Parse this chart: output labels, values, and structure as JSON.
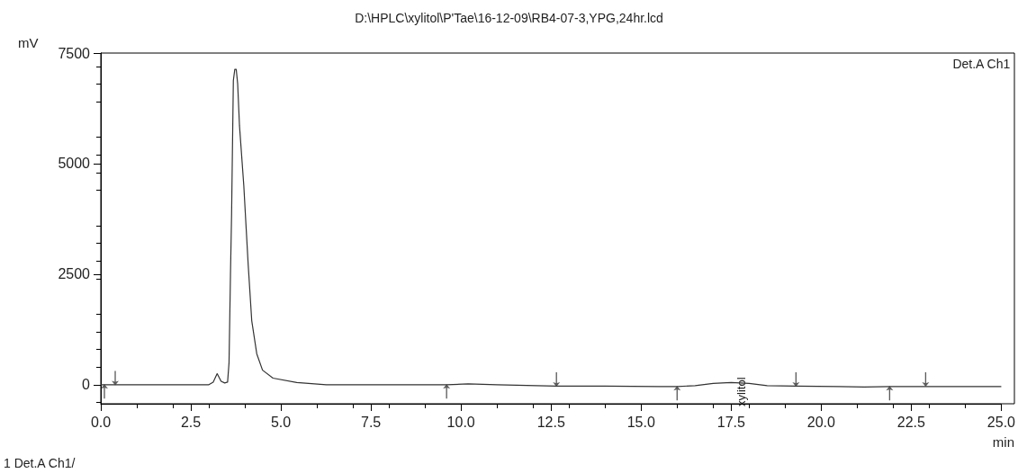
{
  "chart_data": {
    "type": "line",
    "title": "D:\\HPLC\\xylitol\\P'Tae\\16-12-09\\RB4-07-3,YPG,24hr.lcd",
    "xlabel": "min",
    "ylabel": "mV",
    "annotations": [
      "Det.A Ch1",
      "1 Det.A Ch1/",
      {
        "text": "xylitol",
        "x": 17.8,
        "y": 50
      }
    ],
    "series": [
      {
        "color": "#333333",
        "marker": "none",
        "x": [
          0,
          0.3,
          1.5,
          2.5,
          3.0,
          3.12,
          3.23,
          3.34,
          3.44,
          3.52,
          3.56,
          3.6,
          3.63,
          3.68,
          3.72,
          3.76,
          3.8,
          3.85,
          3.97,
          4.09,
          4.19,
          4.33,
          4.49,
          4.78,
          5.44,
          6.26,
          7.5,
          9.0,
          9.6,
          10.2,
          11.0,
          12.65,
          14,
          15.5,
          16.0,
          16.5,
          17.0,
          17.5,
          18.0,
          18.5,
          19.3,
          20.5,
          21.2,
          21.9,
          22.9,
          24,
          25
        ],
        "values": [
          0,
          0,
          0,
          0,
          0,
          60,
          250,
          80,
          40,
          60,
          500,
          2500,
          3820,
          6880,
          7130,
          7130,
          6800,
          5860,
          4500,
          2740,
          1450,
          700,
          330,
          150,
          50,
          0,
          0,
          0,
          0,
          20,
          0,
          -30,
          -30,
          -40,
          -40,
          -20,
          30,
          50,
          30,
          -20,
          -30,
          -40,
          -50,
          -40,
          -40,
          -40,
          -40
        ]
      },
      {
        "type": "scatter",
        "color": "#333333",
        "x": [
          0.1,
          9.6,
          16.0,
          21.9
        ],
        "values": [
          -150,
          -150,
          -190,
          -190
        ]
      },
      {
        "type": "scatter",
        "color": "#333333",
        "x": [
          0.4,
          12.65,
          19.3,
          22.9
        ],
        "values": [
          150,
          120,
          120,
          120
        ]
      }
    ],
    "xlim": [
      0,
      25
    ],
    "xticks": [
      {
        "value": 0,
        "label": "0.0"
      },
      2.5,
      {
        "value": 5,
        "label": "5.0"
      },
      7.5,
      {
        "value": 10,
        "label": "10.0"
      },
      12.5,
      {
        "value": 15,
        "label": "15.0"
      },
      17.5,
      {
        "value": 20,
        "label": "20.0"
      },
      22.5,
      {
        "value": 25,
        "label": "25.0"
      }
    ],
    "ylim": [
      -430,
      7500
    ],
    "yticks": [
      0,
      2500,
      5000,
      7500
    ],
    "grid": false
  }
}
